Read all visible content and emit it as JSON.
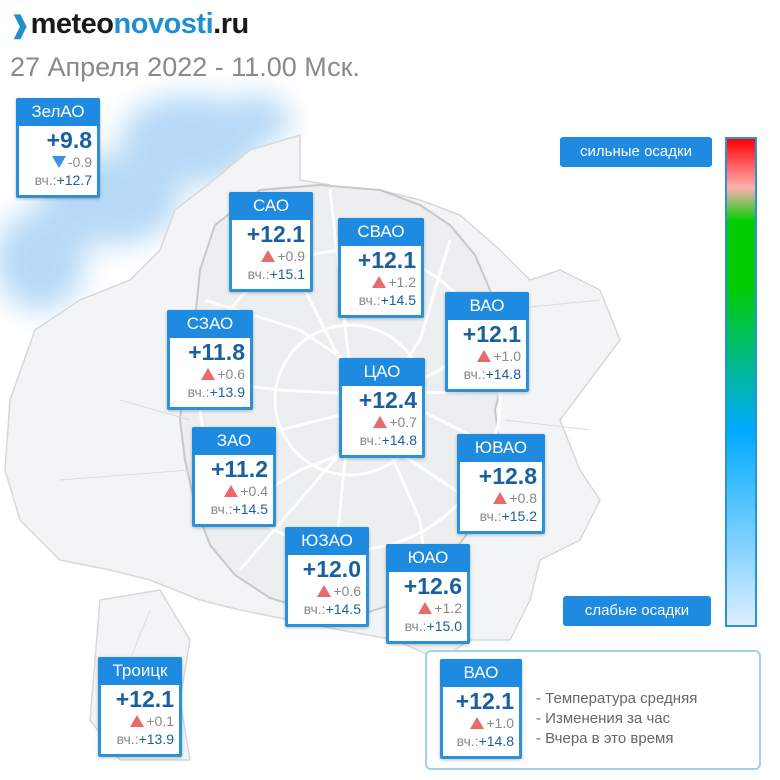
{
  "header": {
    "logo_part1": "meteo",
    "logo_part2": "novosti",
    "logo_part3": ".ru",
    "subtitle": "27 Апреля 2022 - 11.00 Мск."
  },
  "colors": {
    "accent": "#1e8ae0",
    "temp_text": "#1a5f9f",
    "rise": "#e86a6a",
    "fall": "#3e90e0"
  },
  "districts": [
    {
      "name": "ЗелАО",
      "temp": "+9.8",
      "trend": "down",
      "change": "-0.9",
      "yesterday_label": "вч.:",
      "yesterday": "+12.7"
    },
    {
      "name": "САО",
      "temp": "+12.1",
      "trend": "up",
      "change": "+0.9",
      "yesterday_label": "вч.:",
      "yesterday": "+15.1"
    },
    {
      "name": "СВАО",
      "temp": "+12.1",
      "trend": "up",
      "change": "+1.2",
      "yesterday_label": "вч.:",
      "yesterday": "+14.5"
    },
    {
      "name": "ВАО",
      "temp": "+12.1",
      "trend": "up",
      "change": "+1.0",
      "yesterday_label": "вч.:",
      "yesterday": "+14.8"
    },
    {
      "name": "СЗАО",
      "temp": "+11.8",
      "trend": "up",
      "change": "+0.6",
      "yesterday_label": "вч.:",
      "yesterday": "+13.9"
    },
    {
      "name": "ЦАО",
      "temp": "+12.4",
      "trend": "up",
      "change": "+0.7",
      "yesterday_label": "вч.:",
      "yesterday": "+14.8"
    },
    {
      "name": "ЗАО",
      "temp": "+11.2",
      "trend": "up",
      "change": "+0.4",
      "yesterday_label": "вч.:",
      "yesterday": "+14.5"
    },
    {
      "name": "ЮВАО",
      "temp": "+12.8",
      "trend": "up",
      "change": "+0.8",
      "yesterday_label": "вч.:",
      "yesterday": "+15.2"
    },
    {
      "name": "ЮЗАО",
      "temp": "+12.0",
      "trend": "up",
      "change": "+0.6",
      "yesterday_label": "вч.:",
      "yesterday": "+14.5"
    },
    {
      "name": "ЮАО",
      "temp": "+12.6",
      "trend": "up",
      "change": "+1.2",
      "yesterday_label": "вч.:",
      "yesterday": "+15.0"
    },
    {
      "name": "Троицк",
      "temp": "+12.1",
      "trend": "up",
      "change": "+0.1",
      "yesterday_label": "вч.:",
      "yesterday": "+13.9"
    }
  ],
  "precip_scale": {
    "top_label": "сильные осадки",
    "bottom_label": "слабые осадки"
  },
  "legend": {
    "sample": {
      "name": "ВАО",
      "temp": "+12.1",
      "trend": "up",
      "change": "+1.0",
      "yesterday_label": "вч.:",
      "yesterday": "+14.8"
    },
    "lines": [
      "- Температура средняя",
      "- Изменения за час",
      "- Вчера в это время"
    ]
  }
}
